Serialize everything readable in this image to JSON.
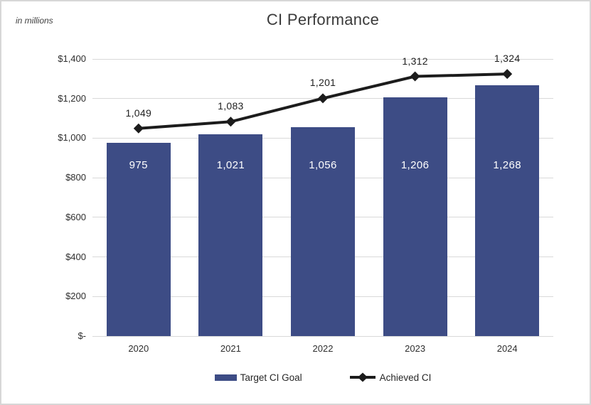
{
  "title": "CI Performance",
  "units_note": "in millions",
  "colors": {
    "bar": "#3d4c85",
    "line": "#1c1c1c",
    "gridline": "#d9d9d9",
    "axis_text": "#2e2e2e",
    "title_text": "#3a3a3a",
    "bar_label_text": "#ffffff",
    "background": "#ffffff",
    "frame_border": "#d7d7d7"
  },
  "chart_data": {
    "type": "bar",
    "title": "CI Performance",
    "subtitle": "in millions",
    "categories": [
      "2020",
      "2021",
      "2022",
      "2023",
      "2024"
    ],
    "series": [
      {
        "name": "Target CI Goal",
        "type": "bar",
        "values": [
          975,
          1021,
          1056,
          1206,
          1268
        ],
        "labels": [
          "975",
          "1,021",
          "1,056",
          "1,206",
          "1,268"
        ]
      },
      {
        "name": "Achieved CI",
        "type": "line",
        "marker": "diamond",
        "values": [
          1049,
          1083,
          1201,
          1312,
          1324
        ],
        "labels": [
          "1,049",
          "1,083",
          "1,201",
          "1,312",
          "1,324"
        ]
      }
    ],
    "y_axis": {
      "min": 0,
      "max": 1400,
      "step": 200,
      "tick_labels": [
        "$-",
        "$200",
        "$400",
        "$600",
        "$800",
        "$1,000",
        "$1,200",
        "$1,400"
      ]
    },
    "grid": true,
    "legend_position": "bottom",
    "legend": [
      {
        "label": "Target CI Goal",
        "marker": "bar-swatch"
      },
      {
        "label": "Achieved CI",
        "marker": "line-diamond"
      }
    ]
  }
}
